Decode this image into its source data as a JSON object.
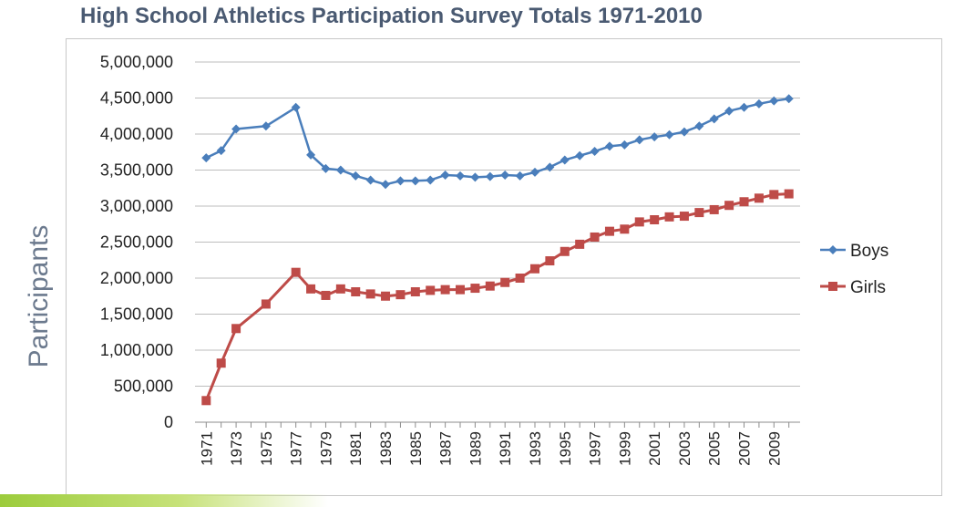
{
  "chart_data": {
    "type": "line",
    "title": "High School Athletics Participation Survey Totals 1971-2010",
    "ylabel": "Participants",
    "xlabel": "",
    "ylim": [
      0,
      5000000
    ],
    "yticks": [
      "0",
      "500,000",
      "1,000,000",
      "1,500,000",
      "2,000,000",
      "2,500,000",
      "3,000,000",
      "3,500,000",
      "4,000,000",
      "4,500,000",
      "5,000,000"
    ],
    "x": [
      1971,
      1972,
      1973,
      1975,
      1977,
      1978,
      1979,
      1980,
      1981,
      1982,
      1983,
      1984,
      1985,
      1986,
      1987,
      1988,
      1989,
      1990,
      1991,
      1992,
      1993,
      1994,
      1995,
      1996,
      1997,
      1998,
      1999,
      2000,
      2001,
      2002,
      2003,
      2004,
      2005,
      2006,
      2007,
      2008,
      2009,
      2010
    ],
    "xticks": [
      "1971",
      "1973",
      "1975",
      "1977",
      "1979",
      "1981",
      "1983",
      "1985",
      "1987",
      "1989",
      "1991",
      "1993",
      "1995",
      "1997",
      "1999",
      "2001",
      "2003",
      "2005",
      "2007",
      "2009"
    ],
    "legend_position": "right",
    "grid": true,
    "series": [
      {
        "name": "Boys",
        "color": "#4a7ebb",
        "marker": "diamond",
        "values": [
          3670000,
          3770000,
          4070000,
          4110000,
          4370000,
          3710000,
          3520000,
          3500000,
          3420000,
          3360000,
          3300000,
          3350000,
          3350000,
          3360000,
          3430000,
          3420000,
          3400000,
          3410000,
          3430000,
          3420000,
          3470000,
          3540000,
          3640000,
          3700000,
          3760000,
          3830000,
          3850000,
          3920000,
          3960000,
          3990000,
          4030000,
          4110000,
          4210000,
          4320000,
          4370000,
          4420000,
          4460000,
          4490000
        ]
      },
      {
        "name": "Girls",
        "color": "#be4b48",
        "marker": "square",
        "values": [
          300000,
          820000,
          1300000,
          1640000,
          2080000,
          1850000,
          1760000,
          1850000,
          1810000,
          1780000,
          1750000,
          1770000,
          1810000,
          1830000,
          1840000,
          1840000,
          1860000,
          1890000,
          1940000,
          2000000,
          2130000,
          2240000,
          2370000,
          2470000,
          2570000,
          2650000,
          2680000,
          2780000,
          2810000,
          2850000,
          2860000,
          2910000,
          2950000,
          3010000,
          3060000,
          3110000,
          3160000,
          3170000
        ]
      }
    ]
  }
}
